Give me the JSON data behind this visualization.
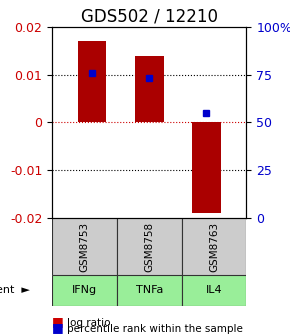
{
  "title": "GDS502 / 12210",
  "samples": [
    "GSM8753",
    "GSM8758",
    "GSM8763"
  ],
  "agents": [
    "IFNg",
    "TNFa",
    "IL4"
  ],
  "log_ratios": [
    0.017,
    0.014,
    -0.019
  ],
  "percentile_ranks": [
    76,
    73,
    55
  ],
  "bar_color": "#aa0000",
  "marker_color": "#0000cc",
  "ylim_left": [
    -0.02,
    0.02
  ],
  "ylim_right": [
    0,
    100
  ],
  "yticks_left": [
    -0.02,
    -0.01,
    0,
    0.01,
    0.02
  ],
  "yticks_right": [
    0,
    25,
    50,
    75,
    100
  ],
  "ytick_labels_right": [
    "0",
    "25",
    "50",
    "75",
    "100%"
  ],
  "bar_width": 0.5,
  "sample_cell_color": "#cccccc",
  "agent_cell_color": "#99ee99",
  "grid_color": "#000000",
  "zero_line_color": "#cc0000",
  "dotted_line_color": "#000000",
  "legend_log_ratio_color": "#cc0000",
  "legend_percentile_color": "#0000cc",
  "title_fontsize": 12,
  "tick_fontsize": 9,
  "label_fontsize": 9,
  "agent_label": "agent"
}
